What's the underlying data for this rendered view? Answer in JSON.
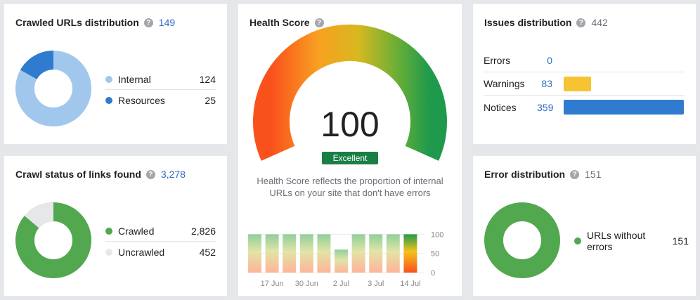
{
  "crawled_urls": {
    "title": "Crawled URLs distribution",
    "count": "149",
    "legend": [
      {
        "label": "Internal",
        "value": "124",
        "color": "#a1c8ec"
      },
      {
        "label": "Resources",
        "value": "25",
        "color": "#2f7bd0"
      }
    ]
  },
  "crawl_status": {
    "title": "Crawl status of links found",
    "count": "3,278",
    "legend": [
      {
        "label": "Crawled",
        "value": "2,826",
        "color": "#52a84f"
      },
      {
        "label": "Uncrawled",
        "value": "452",
        "color": "#e6e7e9"
      }
    ]
  },
  "health": {
    "title": "Health Score",
    "score": "100",
    "badge": "Excellent",
    "description": "Health Score reflects the proportion of internal URLs on your site that don't have errors",
    "badge_color": "#1a7f46"
  },
  "issues": {
    "title": "Issues distribution",
    "count": "442",
    "rows": [
      {
        "label": "Errors",
        "value": "0",
        "fraction": 0,
        "color": "#d9d9d9"
      },
      {
        "label": "Warnings",
        "value": "83",
        "fraction": 0.231,
        "color": "#f8c332"
      },
      {
        "label": "Notices",
        "value": "359",
        "fraction": 1,
        "color": "#2f7bd0"
      }
    ]
  },
  "error_distribution": {
    "title": "Error distribution",
    "count": "151",
    "legend": [
      {
        "label": "URLs without errors",
        "value": "151",
        "color": "#52a84f"
      }
    ]
  },
  "chart_data": {
    "type": "bar",
    "title": "",
    "categories": [
      "",
      "17 Jun",
      "",
      "30 Jun",
      "",
      "2 Jul",
      "",
      "3 Jul",
      "",
      "14 Jul"
    ],
    "values": [
      100,
      100,
      100,
      100,
      100,
      60,
      100,
      100,
      100,
      100
    ],
    "highlight_index": 9,
    "ylim": [
      0,
      110
    ],
    "yticks": [
      "100",
      "50",
      "0"
    ],
    "xlabel": "",
    "ylabel": "",
    "grid": true
  }
}
